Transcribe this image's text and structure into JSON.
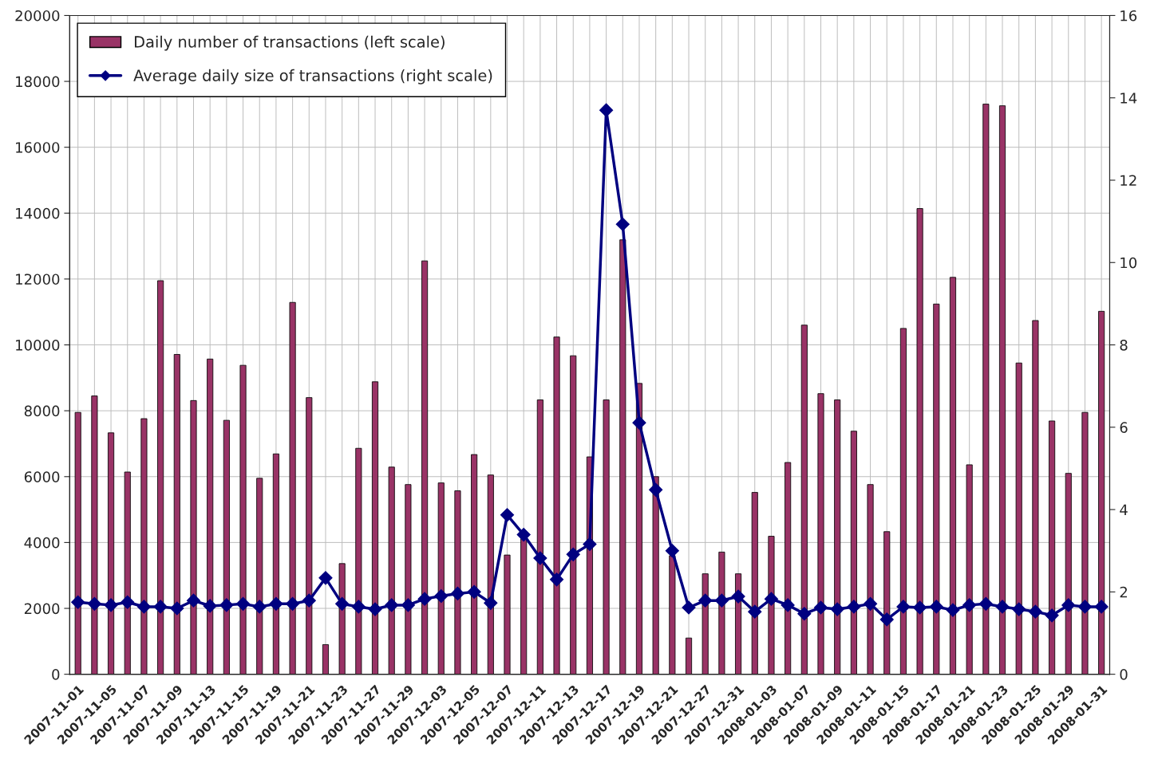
{
  "chart_data": {
    "type": "bar",
    "categories": [
      "2007-11-01",
      null,
      "2007-11-05",
      null,
      "2007-11-07",
      null,
      "2007-11-09",
      null,
      "2007-11-13",
      null,
      "2007-11-15",
      null,
      "2007-11-19",
      null,
      "2007-11-21",
      null,
      "2007-11-23",
      null,
      "2007-11-27",
      null,
      "2007-11-29",
      null,
      "2007-12-03",
      null,
      "2007-12-05",
      null,
      "2007-12-07",
      null,
      "2007-12-11",
      null,
      "2007-12-13",
      null,
      "2007-12-17",
      null,
      "2007-12-19",
      null,
      "2007-12-21",
      null,
      "2007-12-27",
      null,
      "2007-12-31",
      null,
      "2008-01-03",
      null,
      "2008-01-07",
      null,
      "2008-01-09",
      null,
      "2008-01-11",
      null,
      "2008-01-15",
      null,
      "2008-01-17",
      null,
      "2008-01-21",
      null,
      "2008-01-23",
      null,
      "2008-01-25",
      null,
      "2008-01-29",
      null,
      "2008-01-31"
    ],
    "series": [
      {
        "name": "Daily number of transactions (left scale)",
        "color": "#993366",
        "values": [
          7950,
          8450,
          7330,
          6140,
          7760,
          11950,
          9710,
          8310,
          9570,
          7710,
          9380,
          5950,
          6690,
          11290,
          8400,
          900,
          3360,
          6860,
          8880,
          6290,
          5760,
          12550,
          5810,
          5570,
          6670,
          6050,
          3620,
          4120,
          8330,
          10240,
          9670,
          6600,
          8330,
          13190,
          8830,
          6000,
          3600,
          1100,
          3050,
          3710,
          3050,
          5520,
          4190,
          6430,
          10600,
          8520,
          8330,
          7380,
          5760,
          4330,
          10500,
          14140,
          11240,
          12050,
          6360,
          17310,
          17260,
          9450,
          10740,
          7690,
          6100,
          7950,
          11020
        ]
      },
      {
        "name": "Average daily size of transactions (right scale)",
        "type": "line",
        "axis": "y2",
        "color": "#000080",
        "marker": "diamond",
        "values": [
          1.75,
          1.71,
          1.68,
          1.75,
          1.64,
          1.64,
          1.6,
          1.79,
          1.66,
          1.68,
          1.71,
          1.64,
          1.71,
          1.71,
          1.79,
          2.34,
          1.71,
          1.64,
          1.58,
          1.68,
          1.68,
          1.83,
          1.9,
          1.96,
          2.0,
          1.73,
          3.87,
          3.39,
          2.82,
          2.3,
          2.91,
          3.16,
          13.7,
          10.93,
          6.11,
          4.48,
          3.0,
          1.62,
          1.79,
          1.79,
          1.89,
          1.52,
          1.83,
          1.68,
          1.47,
          1.62,
          1.58,
          1.64,
          1.71,
          1.33,
          1.64,
          1.62,
          1.64,
          1.56,
          1.68,
          1.71,
          1.64,
          1.58,
          1.52,
          1.43,
          1.68,
          1.64,
          1.64
        ]
      }
    ],
    "ylim": [
      0,
      20000
    ],
    "yticks": [
      0,
      2000,
      4000,
      6000,
      8000,
      10000,
      12000,
      14000,
      16000,
      18000,
      20000
    ],
    "y2lim": [
      0,
      16
    ],
    "y2ticks": [
      0,
      2,
      4,
      6,
      8,
      10,
      12,
      14,
      16
    ],
    "grid": true,
    "legend": "top left"
  }
}
